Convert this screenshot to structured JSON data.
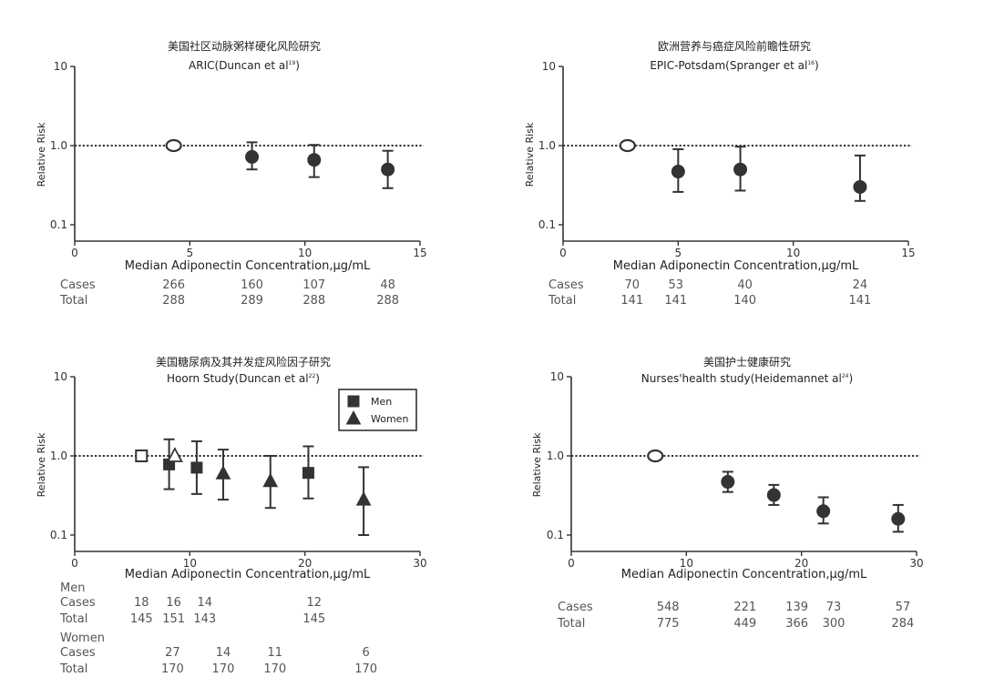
{
  "chart_data": [
    {
      "type": "scatter",
      "title_cn": "美国社区动脉粥样硬化风险研究",
      "title": "ARIC(Duncan et al",
      "title_sup": "19",
      "ylabel": "Relative Risk",
      "xlabel": "Median Adiponectin Concentration,µg/mL",
      "x_ticks": [
        "0",
        "5",
        "10",
        "15"
      ],
      "y_ticks": [
        "10",
        "1.0",
        "0.1"
      ],
      "xlim": [
        0,
        15
      ],
      "ylim": [
        0.1,
        10
      ],
      "y_scale": "log",
      "reference_line": 1.0,
      "series": [
        {
          "marker": "circle",
          "points": [
            {
              "x": 4.3,
              "y": 1.0,
              "lo": 1.0,
              "hi": 1.0,
              "open": true
            },
            {
              "x": 7.7,
              "y": 0.72,
              "lo": 0.5,
              "hi": 1.1
            },
            {
              "x": 10.4,
              "y": 0.66,
              "lo": 0.4,
              "hi": 1.02
            },
            {
              "x": 13.6,
              "y": 0.5,
              "lo": 0.29,
              "hi": 0.86
            }
          ]
        }
      ],
      "table": {
        "rows": [
          {
            "label": "Cases",
            "cells": [
              {
                "x": 4.3,
                "v": "266"
              },
              {
                "x": 7.7,
                "v": "160"
              },
              {
                "x": 10.4,
                "v": "107"
              },
              {
                "x": 13.6,
                "v": "48"
              }
            ]
          },
          {
            "label": "Total",
            "cells": [
              {
                "x": 4.3,
                "v": "288"
              },
              {
                "x": 7.7,
                "v": "289"
              },
              {
                "x": 10.4,
                "v": "288"
              },
              {
                "x": 13.6,
                "v": "288"
              }
            ]
          }
        ]
      }
    },
    {
      "type": "scatter",
      "title_cn": "欧洲营养与癌症风险前瞻性研究",
      "title": "EPIC-Potsdam(Spranger et al",
      "title_sup": "16",
      "ylabel": "Relative Risk",
      "xlabel": "Median Adiponectin Concentration,µg/mL",
      "x_ticks": [
        "0",
        "5",
        "10",
        "15"
      ],
      "y_ticks": [
        "10",
        "1.0",
        "0.1"
      ],
      "xlim": [
        0,
        15
      ],
      "ylim": [
        0.1,
        10
      ],
      "y_scale": "log",
      "reference_line": 1.0,
      "series": [
        {
          "marker": "circle",
          "points": [
            {
              "x": 2.8,
              "y": 1.0,
              "lo": 1.0,
              "hi": 1.0,
              "open": true
            },
            {
              "x": 5.0,
              "y": 0.47,
              "lo": 0.26,
              "hi": 0.9
            },
            {
              "x": 7.7,
              "y": 0.5,
              "lo": 0.27,
              "hi": 0.97
            },
            {
              "x": 12.9,
              "y": 0.3,
              "lo": 0.2,
              "hi": 0.75
            }
          ]
        }
      ],
      "table": {
        "rows": [
          {
            "label": "Cases",
            "cells": [
              {
                "x": 3.0,
                "v": "70"
              },
              {
                "x": 4.9,
                "v": "53"
              },
              {
                "x": 7.9,
                "v": "40"
              },
              {
                "x": 12.9,
                "v": "24"
              }
            ]
          },
          {
            "label": "Total",
            "cells": [
              {
                "x": 3.0,
                "v": "141"
              },
              {
                "x": 4.9,
                "v": "141"
              },
              {
                "x": 7.9,
                "v": "140"
              },
              {
                "x": 12.9,
                "v": "141"
              }
            ]
          }
        ]
      }
    },
    {
      "type": "scatter",
      "title_cn": "美国糖尿病及其并发症风险因子研究",
      "title": "Hoorn Study(Duncan et al",
      "title_sup": "22",
      "ylabel": "Relative Risk",
      "xlabel": "Median Adiponectin Concentration,µg/mL",
      "x_ticks": [
        "0",
        "10",
        "20",
        "30"
      ],
      "y_ticks": [
        "10",
        "1.0",
        "0.1"
      ],
      "xlim": [
        0,
        30
      ],
      "ylim": [
        0.1,
        10
      ],
      "y_scale": "log",
      "reference_line": 1.0,
      "legend": {
        "position": "top-right",
        "entries": [
          {
            "marker": "square",
            "label": "Men"
          },
          {
            "marker": "triangle",
            "label": "Women"
          }
        ]
      },
      "series": [
        {
          "name": "Men",
          "marker": "square",
          "points": [
            {
              "x": 5.8,
              "y": 1.0,
              "lo": 1.0,
              "hi": 1.0,
              "open": true
            },
            {
              "x": 8.2,
              "y": 0.78,
              "lo": 0.38,
              "hi": 1.62
            },
            {
              "x": 10.6,
              "y": 0.71,
              "lo": 0.33,
              "hi": 1.53
            },
            {
              "x": 20.3,
              "y": 0.61,
              "lo": 0.29,
              "hi": 1.32
            }
          ]
        },
        {
          "name": "Women",
          "marker": "triangle",
          "points": [
            {
              "x": 8.7,
              "y": 1.0,
              "lo": 1.0,
              "hi": 1.0,
              "open": true
            },
            {
              "x": 12.9,
              "y": 0.6,
              "lo": 0.28,
              "hi": 1.2
            },
            {
              "x": 17.0,
              "y": 0.48,
              "lo": 0.22,
              "hi": 1.0
            },
            {
              "x": 25.1,
              "y": 0.28,
              "lo": 0.1,
              "hi": 0.72
            }
          ]
        }
      ],
      "table": {
        "groups": [
          {
            "label": "Men",
            "rows": [
              {
                "label": "Cases",
                "cells": [
                  {
                    "x": 5.8,
                    "v": "18"
                  },
                  {
                    "x": 8.6,
                    "v": "16"
                  },
                  {
                    "x": 11.3,
                    "v": "14"
                  },
                  {
                    "x": 20.8,
                    "v": "12"
                  }
                ]
              },
              {
                "label": "Total",
                "cells": [
                  {
                    "x": 5.8,
                    "v": "145"
                  },
                  {
                    "x": 8.6,
                    "v": "151"
                  },
                  {
                    "x": 11.3,
                    "v": "143"
                  },
                  {
                    "x": 20.8,
                    "v": "145"
                  }
                ]
              }
            ]
          },
          {
            "label": "Women",
            "rows": [
              {
                "label": "Cases",
                "cells": [
                  {
                    "x": 8.5,
                    "v": "27"
                  },
                  {
                    "x": 12.9,
                    "v": "14"
                  },
                  {
                    "x": 17.4,
                    "v": "11"
                  },
                  {
                    "x": 25.3,
                    "v": "6"
                  }
                ]
              },
              {
                "label": "Total",
                "cells": [
                  {
                    "x": 8.5,
                    "v": "170"
                  },
                  {
                    "x": 12.9,
                    "v": "170"
                  },
                  {
                    "x": 17.4,
                    "v": "170"
                  },
                  {
                    "x": 25.3,
                    "v": "170"
                  }
                ]
              }
            ]
          }
        ]
      }
    },
    {
      "type": "scatter",
      "title_cn": "美国护士健康研究",
      "title": "Nurses'health study(Heidemannet al",
      "title_sup": "24",
      "ylabel": "Relative Risk",
      "xlabel": "Median Adiponectin Concentration,µg/mL",
      "x_ticks": [
        "0",
        "10",
        "20",
        "30"
      ],
      "y_ticks": [
        "10",
        "1.0",
        "0.1"
      ],
      "xlim": [
        0,
        30
      ],
      "ylim": [
        0.1,
        10
      ],
      "y_scale": "log",
      "reference_line": 1.0,
      "series": [
        {
          "marker": "circle",
          "points": [
            {
              "x": 7.3,
              "y": 1.0,
              "lo": 1.0,
              "hi": 1.0,
              "open": true
            },
            {
              "x": 13.6,
              "y": 0.47,
              "lo": 0.35,
              "hi": 0.63
            },
            {
              "x": 17.6,
              "y": 0.32,
              "lo": 0.24,
              "hi": 0.43
            },
            {
              "x": 21.9,
              "y": 0.2,
              "lo": 0.14,
              "hi": 0.3
            },
            {
              "x": 28.4,
              "y": 0.16,
              "lo": 0.11,
              "hi": 0.24
            }
          ]
        }
      ],
      "table": {
        "rows": [
          {
            "label": "Cases",
            "cells": [
              {
                "x": 8.4,
                "v": "548"
              },
              {
                "x": 15.1,
                "v": "221"
              },
              {
                "x": 19.6,
                "v": "139"
              },
              {
                "x": 22.8,
                "v": "73"
              },
              {
                "x": 28.8,
                "v": "57"
              }
            ]
          },
          {
            "label": "Total",
            "cells": [
              {
                "x": 8.4,
                "v": "775"
              },
              {
                "x": 15.1,
                "v": "449"
              },
              {
                "x": 19.6,
                "v": "366"
              },
              {
                "x": 22.8,
                "v": "300"
              },
              {
                "x": 28.8,
                "v": "284"
              }
            ]
          }
        ]
      }
    }
  ]
}
